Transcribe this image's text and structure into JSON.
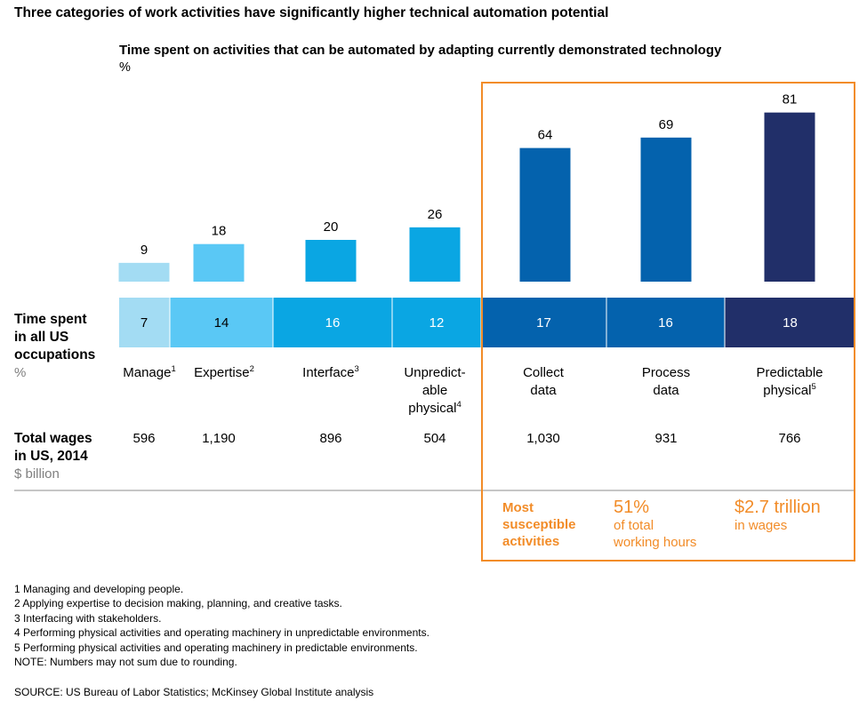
{
  "title": "Three categories of work activities have significantly higher technical automation potential",
  "subtitle": "Time spent on activities that can be automated by adapting currently demonstrated technology",
  "unit": "%",
  "chart_data": {
    "type": "bar",
    "title": "Time spent on activities that can be automated by adapting currently demonstrated technology",
    "ylabel": "%",
    "ylim": [
      0,
      100
    ],
    "categories": [
      {
        "label": "Manage",
        "sup": "1"
      },
      {
        "label": "Expertise",
        "sup": "2"
      },
      {
        "label": "Interface",
        "sup": "3"
      },
      {
        "label": "Unpredict-able physical",
        "lines": [
          "Unpredict-",
          "able",
          "physical"
        ],
        "sup": "4"
      },
      {
        "label": "Collect data",
        "lines": [
          "Collect",
          "data"
        ],
        "sup": ""
      },
      {
        "label": "Process data",
        "lines": [
          "Process",
          "data"
        ],
        "sup": ""
      },
      {
        "label": "Predictable physical",
        "lines": [
          "Predictable",
          "physical"
        ],
        "sup": "5"
      }
    ],
    "values": [
      9,
      18,
      20,
      26,
      64,
      69,
      81
    ],
    "time_spent_share": [
      7,
      14,
      16,
      12,
      17,
      16,
      18
    ],
    "total_wages": [
      "596",
      "1,190",
      "896",
      "504",
      "1,030",
      "931",
      "766"
    ],
    "colors": {
      "bars": [
        "#a3dcf3",
        "#5ac8f5",
        "#0aa6e3",
        "#0aa6e3",
        "#0462ad",
        "#0462ad",
        "#212f69"
      ],
      "band": [
        "#a3dcf3",
        "#5ac8f5",
        "#0aa6e3",
        "#0aa6e3",
        "#0462ad",
        "#0462ad",
        "#212f69"
      ],
      "band_text": [
        "#000000",
        "#000000",
        "#ffffff",
        "#ffffff",
        "#ffffff",
        "#ffffff",
        "#ffffff"
      ],
      "highlight": "#f28c28"
    }
  },
  "rows": {
    "time_spent": {
      "lines": [
        "Time spent",
        "in all US",
        "occupations"
      ],
      "unit": "%"
    },
    "wages": {
      "lines": [
        "Total wages",
        "in US, 2014"
      ],
      "unit": "$ billion"
    }
  },
  "callouts": {
    "most": {
      "lines": [
        "Most",
        "susceptible",
        "activities"
      ]
    },
    "hours": {
      "big": "51%",
      "lines": [
        "of total",
        "working hours"
      ]
    },
    "wages": {
      "big": "$2.7 trillion",
      "lines": [
        "in wages"
      ]
    }
  },
  "footnotes": [
    "1  Managing and developing people.",
    "2  Applying expertise to decision making, planning, and creative tasks.",
    "3  Interfacing with stakeholders.",
    "4  Performing physical activities and operating machinery in unpredictable environments.",
    "5  Performing physical activities and operating machinery in predictable environments.",
    "NOTE: Numbers may not sum due to rounding."
  ],
  "source": "SOURCE:  US Bureau of Labor Statistics; McKinsey Global Institute analysis"
}
